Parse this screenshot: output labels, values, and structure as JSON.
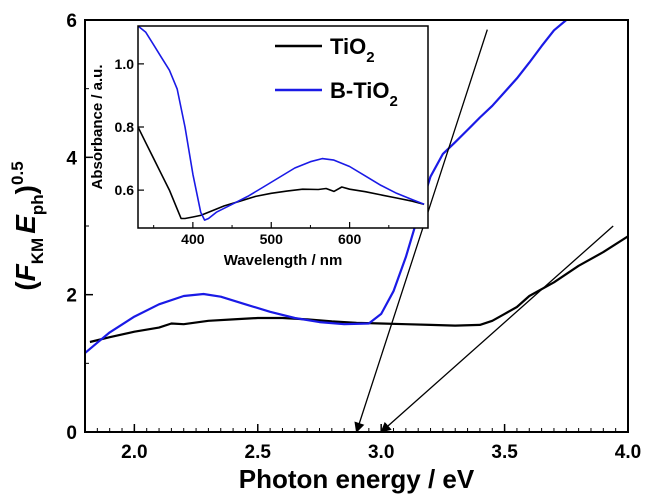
{
  "chart_data": {
    "type": "line",
    "xlabel": "Photon energy / eV",
    "ylabel": {
      "open": "(",
      "f": "F",
      "f_sub": "KM",
      "e": "E",
      "e_sub": "ph",
      "close": ")",
      "sup": "0.5"
    },
    "xlim": [
      1.8,
      4.0
    ],
    "ylim": [
      0,
      6
    ],
    "x_ticks": [
      "2.0",
      "2.5",
      "3.0",
      "3.5",
      "4.0"
    ],
    "y_ticks": [
      "0",
      "2",
      "4",
      "6"
    ],
    "legend_position": "top-center",
    "legend": [
      {
        "label_main": "TiO",
        "label_sub": "2",
        "color": "#000000"
      },
      {
        "label_main": "B-TiO",
        "label_sub": "2",
        "color": "#1a1ae6"
      }
    ],
    "series": [
      {
        "color": "#000000",
        "x": [
          1.82,
          1.9,
          2.0,
          2.1,
          2.15,
          2.2,
          2.3,
          2.4,
          2.5,
          2.6,
          2.7,
          2.8,
          2.9,
          3.0,
          3.1,
          3.2,
          3.3,
          3.4,
          3.45,
          3.5,
          3.55,
          3.6,
          3.7,
          3.8,
          3.9,
          4.0
        ],
        "y": [
          1.31,
          1.38,
          1.46,
          1.52,
          1.58,
          1.57,
          1.62,
          1.64,
          1.66,
          1.66,
          1.64,
          1.61,
          1.59,
          1.58,
          1.57,
          1.56,
          1.55,
          1.56,
          1.62,
          1.72,
          1.82,
          1.98,
          2.18,
          2.42,
          2.62,
          2.85
        ]
      },
      {
        "color": "#1a1ae6",
        "x": [
          1.8,
          1.85,
          1.9,
          2.0,
          2.1,
          2.2,
          2.28,
          2.35,
          2.45,
          2.55,
          2.65,
          2.75,
          2.85,
          2.95,
          3.0,
          3.05,
          3.1,
          3.15,
          3.2,
          3.25,
          3.3,
          3.35,
          3.4,
          3.45,
          3.5,
          3.55,
          3.6,
          3.65,
          3.7,
          3.75
        ],
        "y": [
          1.15,
          1.3,
          1.45,
          1.68,
          1.86,
          1.98,
          2.01,
          1.97,
          1.86,
          1.75,
          1.66,
          1.6,
          1.57,
          1.58,
          1.72,
          2.05,
          2.55,
          3.15,
          3.72,
          4.05,
          4.22,
          4.4,
          4.58,
          4.75,
          4.95,
          5.15,
          5.38,
          5.62,
          5.85,
          6.0
        ]
      }
    ],
    "tangent_lines": [
      {
        "x": [
          2.9,
          3.43
        ],
        "y": [
          0,
          5.86
        ]
      },
      {
        "x": [
          3.0,
          3.94
        ],
        "y": [
          0,
          3.0
        ]
      }
    ],
    "inset": {
      "type": "line",
      "xlabel": "Wavelength / nm",
      "ylabel": "Absorbance / a.u.",
      "xlim": [
        330,
        700
      ],
      "ylim": [
        0.48,
        1.12
      ],
      "x_ticks": [
        "400",
        "500",
        "600"
      ],
      "y_ticks": [
        "0.6",
        "0.8",
        "1.0"
      ],
      "series": [
        {
          "color": "#000000",
          "x": [
            330,
            340,
            350,
            360,
            370,
            380,
            385,
            390,
            400,
            410,
            420,
            440,
            460,
            480,
            500,
            520,
            540,
            560,
            570,
            580,
            590,
            600,
            620,
            640,
            660,
            680,
            695
          ],
          "y": [
            0.8,
            0.75,
            0.7,
            0.65,
            0.6,
            0.54,
            0.51,
            0.51,
            0.515,
            0.52,
            0.53,
            0.55,
            0.565,
            0.58,
            0.59,
            0.597,
            0.603,
            0.602,
            0.605,
            0.596,
            0.61,
            0.603,
            0.595,
            0.585,
            0.575,
            0.565,
            0.555
          ]
        },
        {
          "color": "#1a1ae6",
          "x": [
            330,
            340,
            350,
            360,
            370,
            380,
            390,
            400,
            410,
            415,
            420,
            430,
            450,
            470,
            490,
            510,
            530,
            550,
            565,
            580,
            600,
            620,
            640,
            660,
            680,
            695
          ],
          "y": [
            1.12,
            1.1,
            1.06,
            1.02,
            0.98,
            0.92,
            0.8,
            0.65,
            0.53,
            0.505,
            0.51,
            0.53,
            0.555,
            0.58,
            0.61,
            0.64,
            0.67,
            0.69,
            0.7,
            0.695,
            0.675,
            0.645,
            0.615,
            0.59,
            0.57,
            0.555
          ]
        }
      ]
    }
  }
}
